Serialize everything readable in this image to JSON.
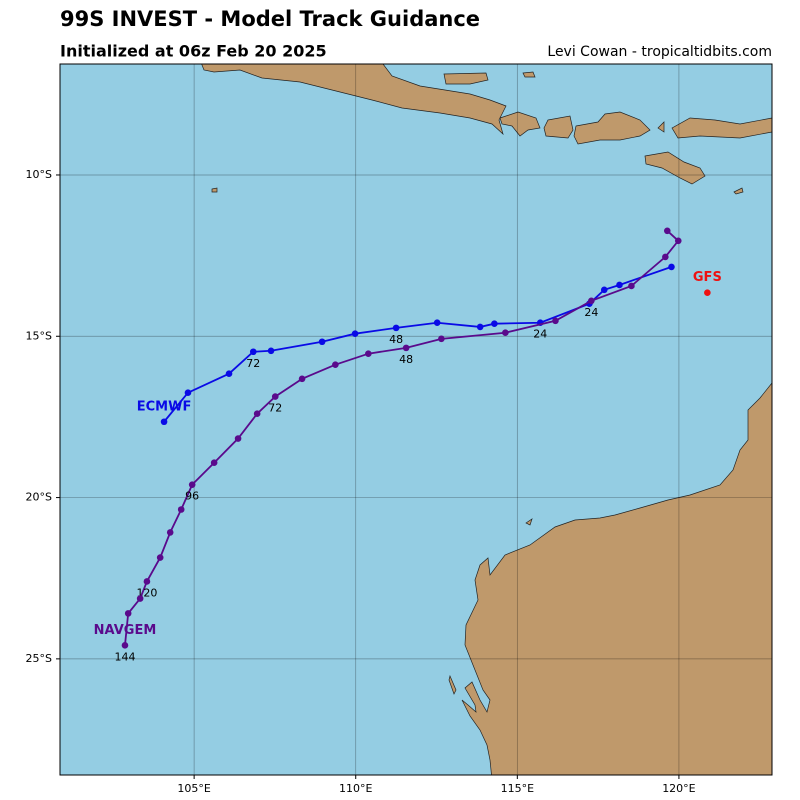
{
  "chart_data": {
    "type": "track-map",
    "title": "99S INVEST - Model Track Guidance",
    "subtitle": "Initialized at 06z Feb 20 2025",
    "credit": "Levi Cowan - tropicaltidbits.com",
    "xlim": [
      100.85,
      122.88
    ],
    "ylim": [
      -28.6,
      -6.56
    ],
    "xticks": [
      {
        "value": 105,
        "label": "105°E"
      },
      {
        "value": 110,
        "label": "110°E"
      },
      {
        "value": 115,
        "label": "115°E"
      },
      {
        "value": 120,
        "label": "120°E"
      }
    ],
    "yticks": [
      {
        "value": -10,
        "label": "10°S"
      },
      {
        "value": -15,
        "label": "15°S"
      },
      {
        "value": -20,
        "label": "20°S"
      },
      {
        "value": -25,
        "label": "25°S"
      }
    ],
    "grid": true,
    "series": [
      {
        "name": "ECMWF",
        "color": "#0a0ae6",
        "x": [
          119.77,
          118.16,
          117.69,
          117.23,
          115.71,
          114.29,
          113.85,
          112.52,
          111.25,
          109.98,
          108.96,
          107.38,
          106.83,
          106.08,
          104.81,
          104.07
        ],
        "values": [
          -12.85,
          -13.41,
          -13.56,
          -13.99,
          -14.58,
          -14.61,
          -14.71,
          -14.58,
          -14.74,
          -14.92,
          -15.17,
          -15.45,
          -15.48,
          -16.16,
          -16.75,
          -17.65
        ],
        "point_labels": [
          null,
          null,
          null,
          null,
          "24",
          null,
          null,
          null,
          "48",
          null,
          null,
          null,
          "72",
          null,
          null,
          null
        ]
      },
      {
        "name": "NAVGEM",
        "color": "#5a0a8c",
        "x": [
          119.64,
          119.98,
          119.58,
          118.53,
          117.29,
          116.18,
          114.63,
          112.65,
          111.56,
          110.39,
          109.37,
          108.34,
          107.51,
          106.95,
          106.36,
          105.62,
          104.94,
          104.6,
          104.26,
          103.95,
          103.54,
          103.33,
          102.96,
          102.86
        ],
        "values": [
          -11.73,
          -12.04,
          -12.54,
          -13.44,
          -13.9,
          -14.52,
          -14.89,
          -15.08,
          -15.36,
          -15.54,
          -15.88,
          -16.32,
          -16.87,
          -17.4,
          -18.17,
          -18.92,
          -19.6,
          -20.37,
          -21.08,
          -21.86,
          -22.6,
          -23.13,
          -23.59,
          -24.58
        ],
        "point_labels": [
          null,
          null,
          null,
          null,
          "24",
          null,
          null,
          null,
          "48",
          null,
          null,
          null,
          "72",
          null,
          null,
          null,
          "96",
          null,
          null,
          null,
          "120",
          null,
          null,
          "144"
        ]
      },
      {
        "name": "GFS",
        "color": "#ee1111",
        "x": [
          120.88
        ],
        "values": [
          -13.65
        ],
        "point_labels": [
          null
        ]
      }
    ]
  }
}
